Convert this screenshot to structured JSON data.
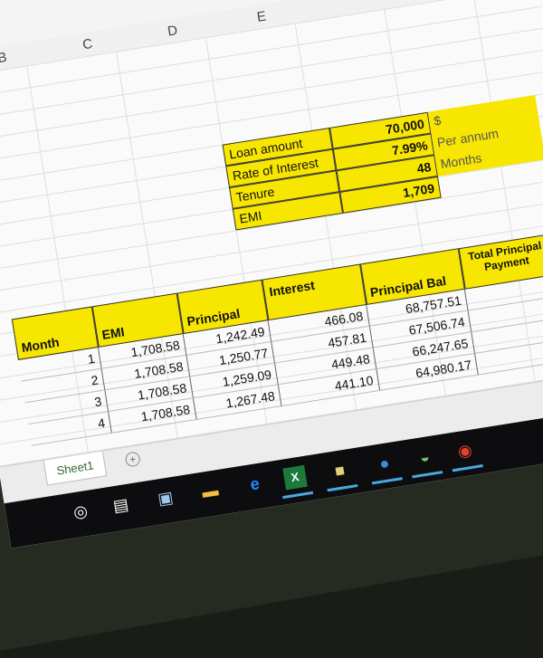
{
  "columns": [
    "B",
    "C",
    "D",
    "E"
  ],
  "summary": {
    "rows": [
      {
        "label": "Loan amount",
        "value": "70,000",
        "unit": "$"
      },
      {
        "label": "Rate of Interest",
        "value": "7.99%",
        "unit": "Per annum"
      },
      {
        "label": "Tenure",
        "value": "48",
        "unit": "Months"
      },
      {
        "label": "EMI",
        "value": "1,709",
        "unit": ""
      }
    ]
  },
  "schedule": {
    "headers": [
      "Month",
      "EMI",
      "Principal",
      "Interest",
      "Principal Bal",
      "Total Principal Payment"
    ],
    "rows": [
      [
        "1",
        "1,708.58",
        "1,242.49",
        "466.08",
        "68,757.51"
      ],
      [
        "2",
        "1,708.58",
        "1,250.77",
        "457.81",
        "67,506.74"
      ],
      [
        "3",
        "1,708.58",
        "1,259.09",
        "449.48",
        "66,247.65"
      ],
      [
        "4",
        "1,708.58",
        "1,267.48",
        "441.10",
        "64,980.17"
      ]
    ]
  },
  "sheet_tab": "Sheet1",
  "add_sheet": "+",
  "highlight_color": "#f7e600",
  "taskbar": {
    "icons": [
      "cortana-icon",
      "task-view-icon",
      "remote-desktop-icon",
      "file-explorer-icon",
      "edge-icon",
      "excel-icon",
      "sticky-notes-icon",
      "globe-icon",
      "network-icon",
      "chrome-icon"
    ]
  }
}
